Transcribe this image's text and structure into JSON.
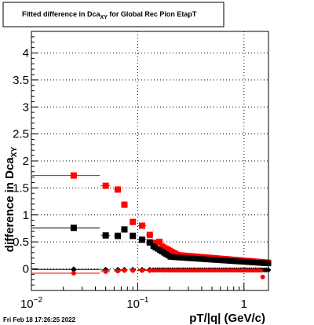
{
  "chart_data": {
    "type": "scatter",
    "title": "Fitted difference in Dca",
    "title_sub": "XY",
    "title_suffix": " for Global Rec Pion EtapT",
    "xlabel": "pT/|q| (GeV/c)",
    "ylabel": "difference in Dca",
    "ylabel_sub": "XY",
    "xscale": "log",
    "xlim": [
      0.01,
      1.7
    ],
    "ylim": [
      -0.4,
      4.4
    ],
    "x_tick_labels": [
      {
        "value": 0.01,
        "base": "10",
        "exp": "−2"
      },
      {
        "value": 0.1,
        "base": "10",
        "exp": "−1"
      },
      {
        "value": 1,
        "base": "1",
        "exp": ""
      }
    ],
    "y_ticks": [
      0,
      0.5,
      1,
      1.5,
      2,
      2.5,
      3,
      3.5,
      4
    ],
    "y_tick_labels": [
      "0",
      "0.5",
      "1",
      "1.5",
      "2",
      "2.5",
      "3",
      "3.5",
      "4"
    ],
    "grid": true,
    "timestamp": "Fri Feb 18 17:26:25 2022",
    "series": [
      {
        "color": "#ff0000",
        "marker": "square",
        "x": [
          0.025,
          0.05,
          0.065,
          0.075,
          0.09,
          0.11,
          0.13,
          0.145,
          0.16
        ],
        "y": [
          1.73,
          1.54,
          1.47,
          1.19,
          0.87,
          0.8,
          0.63,
          0.48,
          0.5
        ],
        "x_low": [
          0.0102,
          0.045,
          0.06,
          0.07,
          0.085,
          0.1,
          0.12,
          0.14,
          0.155
        ],
        "x_high": [
          0.044,
          0.055,
          0.07,
          0.08,
          0.095,
          0.12,
          0.14,
          0.15,
          0.165
        ],
        "tail": {
          "x_start": 0.17,
          "x_end": 1.7,
          "y_start": 0.42,
          "y_mid": 0.26,
          "y_end": 0.12,
          "n": 55
        }
      },
      {
        "color": "#000000",
        "marker": "square",
        "x": [
          0.025,
          0.05,
          0.065,
          0.075,
          0.09,
          0.11,
          0.13
        ],
        "y": [
          0.76,
          0.62,
          0.61,
          0.73,
          0.61,
          0.54,
          0.49
        ],
        "x_low": [
          0.0102,
          0.045,
          0.06,
          0.07,
          0.085,
          0.1,
          0.12
        ],
        "x_high": [
          0.044,
          0.055,
          0.07,
          0.08,
          0.095,
          0.12,
          0.14
        ],
        "tail": {
          "x_start": 0.14,
          "x_end": 1.7,
          "y_start": 0.42,
          "y_mid": 0.22,
          "y_end": 0.1,
          "n": 55
        }
      },
      {
        "color": "#000000",
        "marker": "diamond",
        "x": [
          0.025,
          0.05,
          0.065,
          0.075,
          0.09,
          0.11,
          0.13
        ],
        "y": [
          -0.01,
          -0.02,
          -0.02,
          -0.02,
          -0.02,
          -0.02,
          -0.02
        ],
        "x_low": [
          0.0102,
          0.045,
          0.06,
          0.07,
          0.085,
          0.1,
          0.12
        ],
        "x_high": [
          0.044,
          0.055,
          0.07,
          0.08,
          0.095,
          0.12,
          0.14
        ],
        "tail": {
          "x_start": 0.14,
          "x_end": 1.7,
          "y_start": -0.02,
          "y_mid": -0.02,
          "y_end": -0.02,
          "n": 55
        }
      },
      {
        "color": "#ff0000",
        "marker": "circle",
        "x": [
          0.025,
          0.05,
          0.065,
          0.075,
          0.09,
          0.11,
          0.13,
          1.5
        ],
        "y": [
          -0.08,
          -0.05,
          -0.04,
          -0.03,
          -0.03,
          -0.03,
          -0.03,
          -0.15
        ],
        "x_low": [
          0.0102,
          0.045,
          0.06,
          0.07,
          0.085,
          0.1,
          0.12,
          1.45
        ],
        "x_high": [
          0.044,
          0.055,
          0.07,
          0.08,
          0.095,
          0.12,
          0.14,
          1.55
        ],
        "tail": {
          "x_start": 0.14,
          "x_end": 1.45,
          "y_start": -0.03,
          "y_mid": -0.03,
          "y_end": -0.03,
          "n": 50
        }
      }
    ]
  }
}
